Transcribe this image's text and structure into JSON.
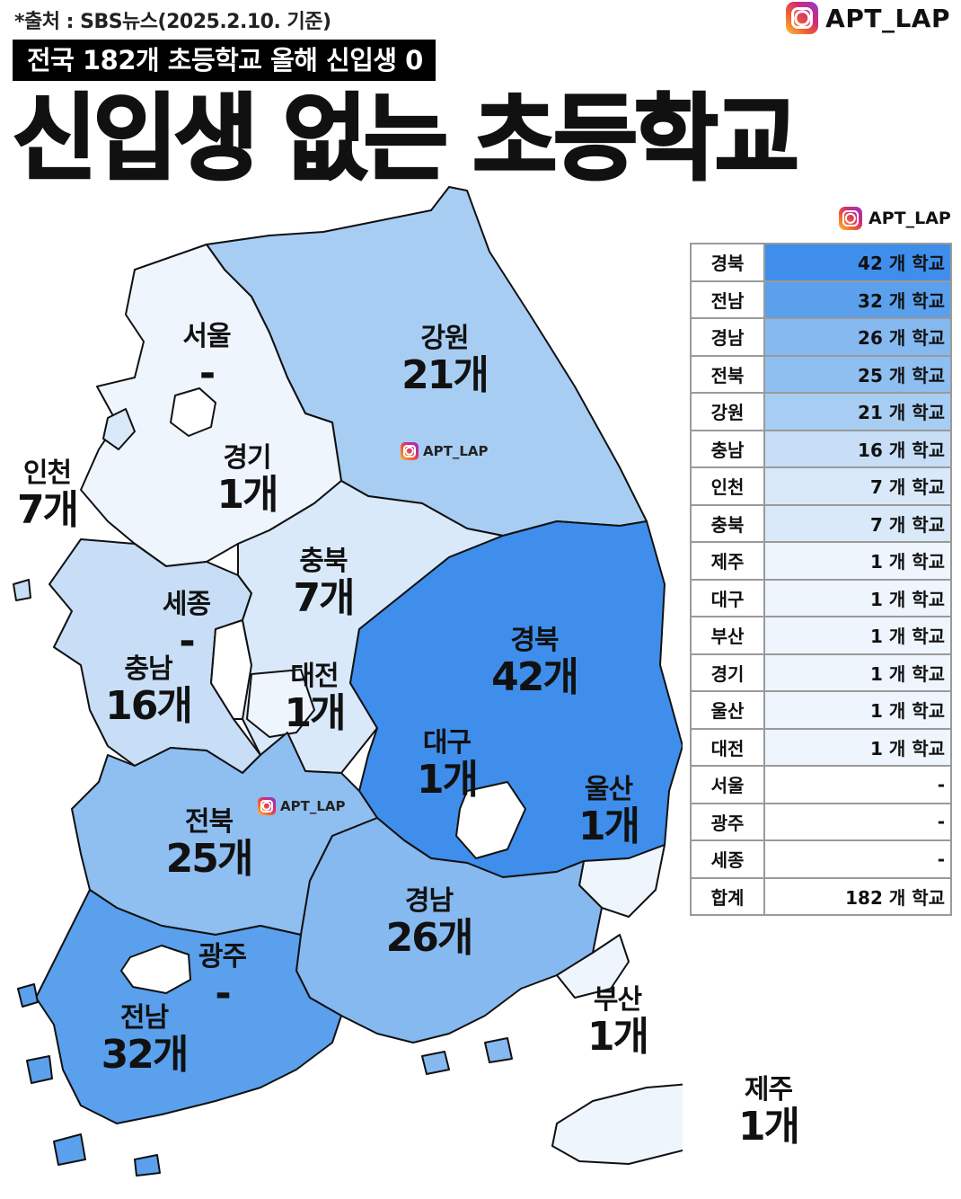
{
  "source": "*출처 : SBS뉴스(2025.2.10. 기준)",
  "brand": "APT_LAP",
  "subtitle": "전국 182개 초등학교 올해 신입생 0",
  "title": "신입생 없는 초등학교",
  "colors": {
    "none": "#ffffff",
    "one": "#eef5fd",
    "seven": "#d9e9f9",
    "sixteen": "#c7def6",
    "twentyone": "#a8cdf3",
    "twentysix": "#86b9f0",
    "thirtytwo": "#5aa0ec",
    "fortytwo": "#3f8eeb"
  },
  "regions": {
    "seoul": {
      "name": "서울",
      "count": "-"
    },
    "gyeonggi": {
      "name": "경기",
      "count": "1개"
    },
    "incheon": {
      "name": "인천",
      "count": "7개"
    },
    "gangwon": {
      "name": "강원",
      "count": "21개"
    },
    "chungbuk": {
      "name": "충북",
      "count": "7개"
    },
    "sejong": {
      "name": "세종",
      "count": "-"
    },
    "chungnam": {
      "name": "충남",
      "count": "16개"
    },
    "daejeon": {
      "name": "대전",
      "count": "1개"
    },
    "gyeongbuk": {
      "name": "경북",
      "count": "42개"
    },
    "daegu": {
      "name": "대구",
      "count": "1개"
    },
    "ulsan": {
      "name": "울산",
      "count": "1개"
    },
    "jeonbuk": {
      "name": "전북",
      "count": "25개"
    },
    "gyeongnam": {
      "name": "경남",
      "count": "26개"
    },
    "gwangju": {
      "name": "광주",
      "count": "-"
    },
    "jeonnam": {
      "name": "전남",
      "count": "32개"
    },
    "busan": {
      "name": "부산",
      "count": "1개"
    },
    "jeju": {
      "name": "제주",
      "count": "1개"
    }
  },
  "table": [
    {
      "region": "경북",
      "value": "42 개 학교",
      "color": "#3f8eeb"
    },
    {
      "region": "전남",
      "value": "32 개 학교",
      "color": "#5aa0ec"
    },
    {
      "region": "경남",
      "value": "26 개 학교",
      "color": "#86b9f0"
    },
    {
      "region": "전북",
      "value": "25 개 학교",
      "color": "#8fbef0"
    },
    {
      "region": "강원",
      "value": "21 개 학교",
      "color": "#a8cdf3"
    },
    {
      "region": "충남",
      "value": "16 개 학교",
      "color": "#c7def6"
    },
    {
      "region": "인천",
      "value": "7 개 학교",
      "color": "#d9e9f9"
    },
    {
      "region": "충북",
      "value": "7 개 학교",
      "color": "#d9e9f9"
    },
    {
      "region": "제주",
      "value": "1 개 학교",
      "color": "#eef5fd"
    },
    {
      "region": "대구",
      "value": "1 개 학교",
      "color": "#eef5fd"
    },
    {
      "region": "부산",
      "value": "1 개 학교",
      "color": "#eef5fd"
    },
    {
      "region": "경기",
      "value": "1 개 학교",
      "color": "#eef5fd"
    },
    {
      "region": "울산",
      "value": "1 개 학교",
      "color": "#eef5fd"
    },
    {
      "region": "대전",
      "value": "1 개 학교",
      "color": "#eef5fd"
    },
    {
      "region": "서울",
      "value": "-",
      "color": "#ffffff"
    },
    {
      "region": "광주",
      "value": "-",
      "color": "#ffffff"
    },
    {
      "region": "세종",
      "value": "-",
      "color": "#ffffff"
    },
    {
      "region": "합계",
      "value": "182 개 학교",
      "color": "#ffffff"
    }
  ]
}
